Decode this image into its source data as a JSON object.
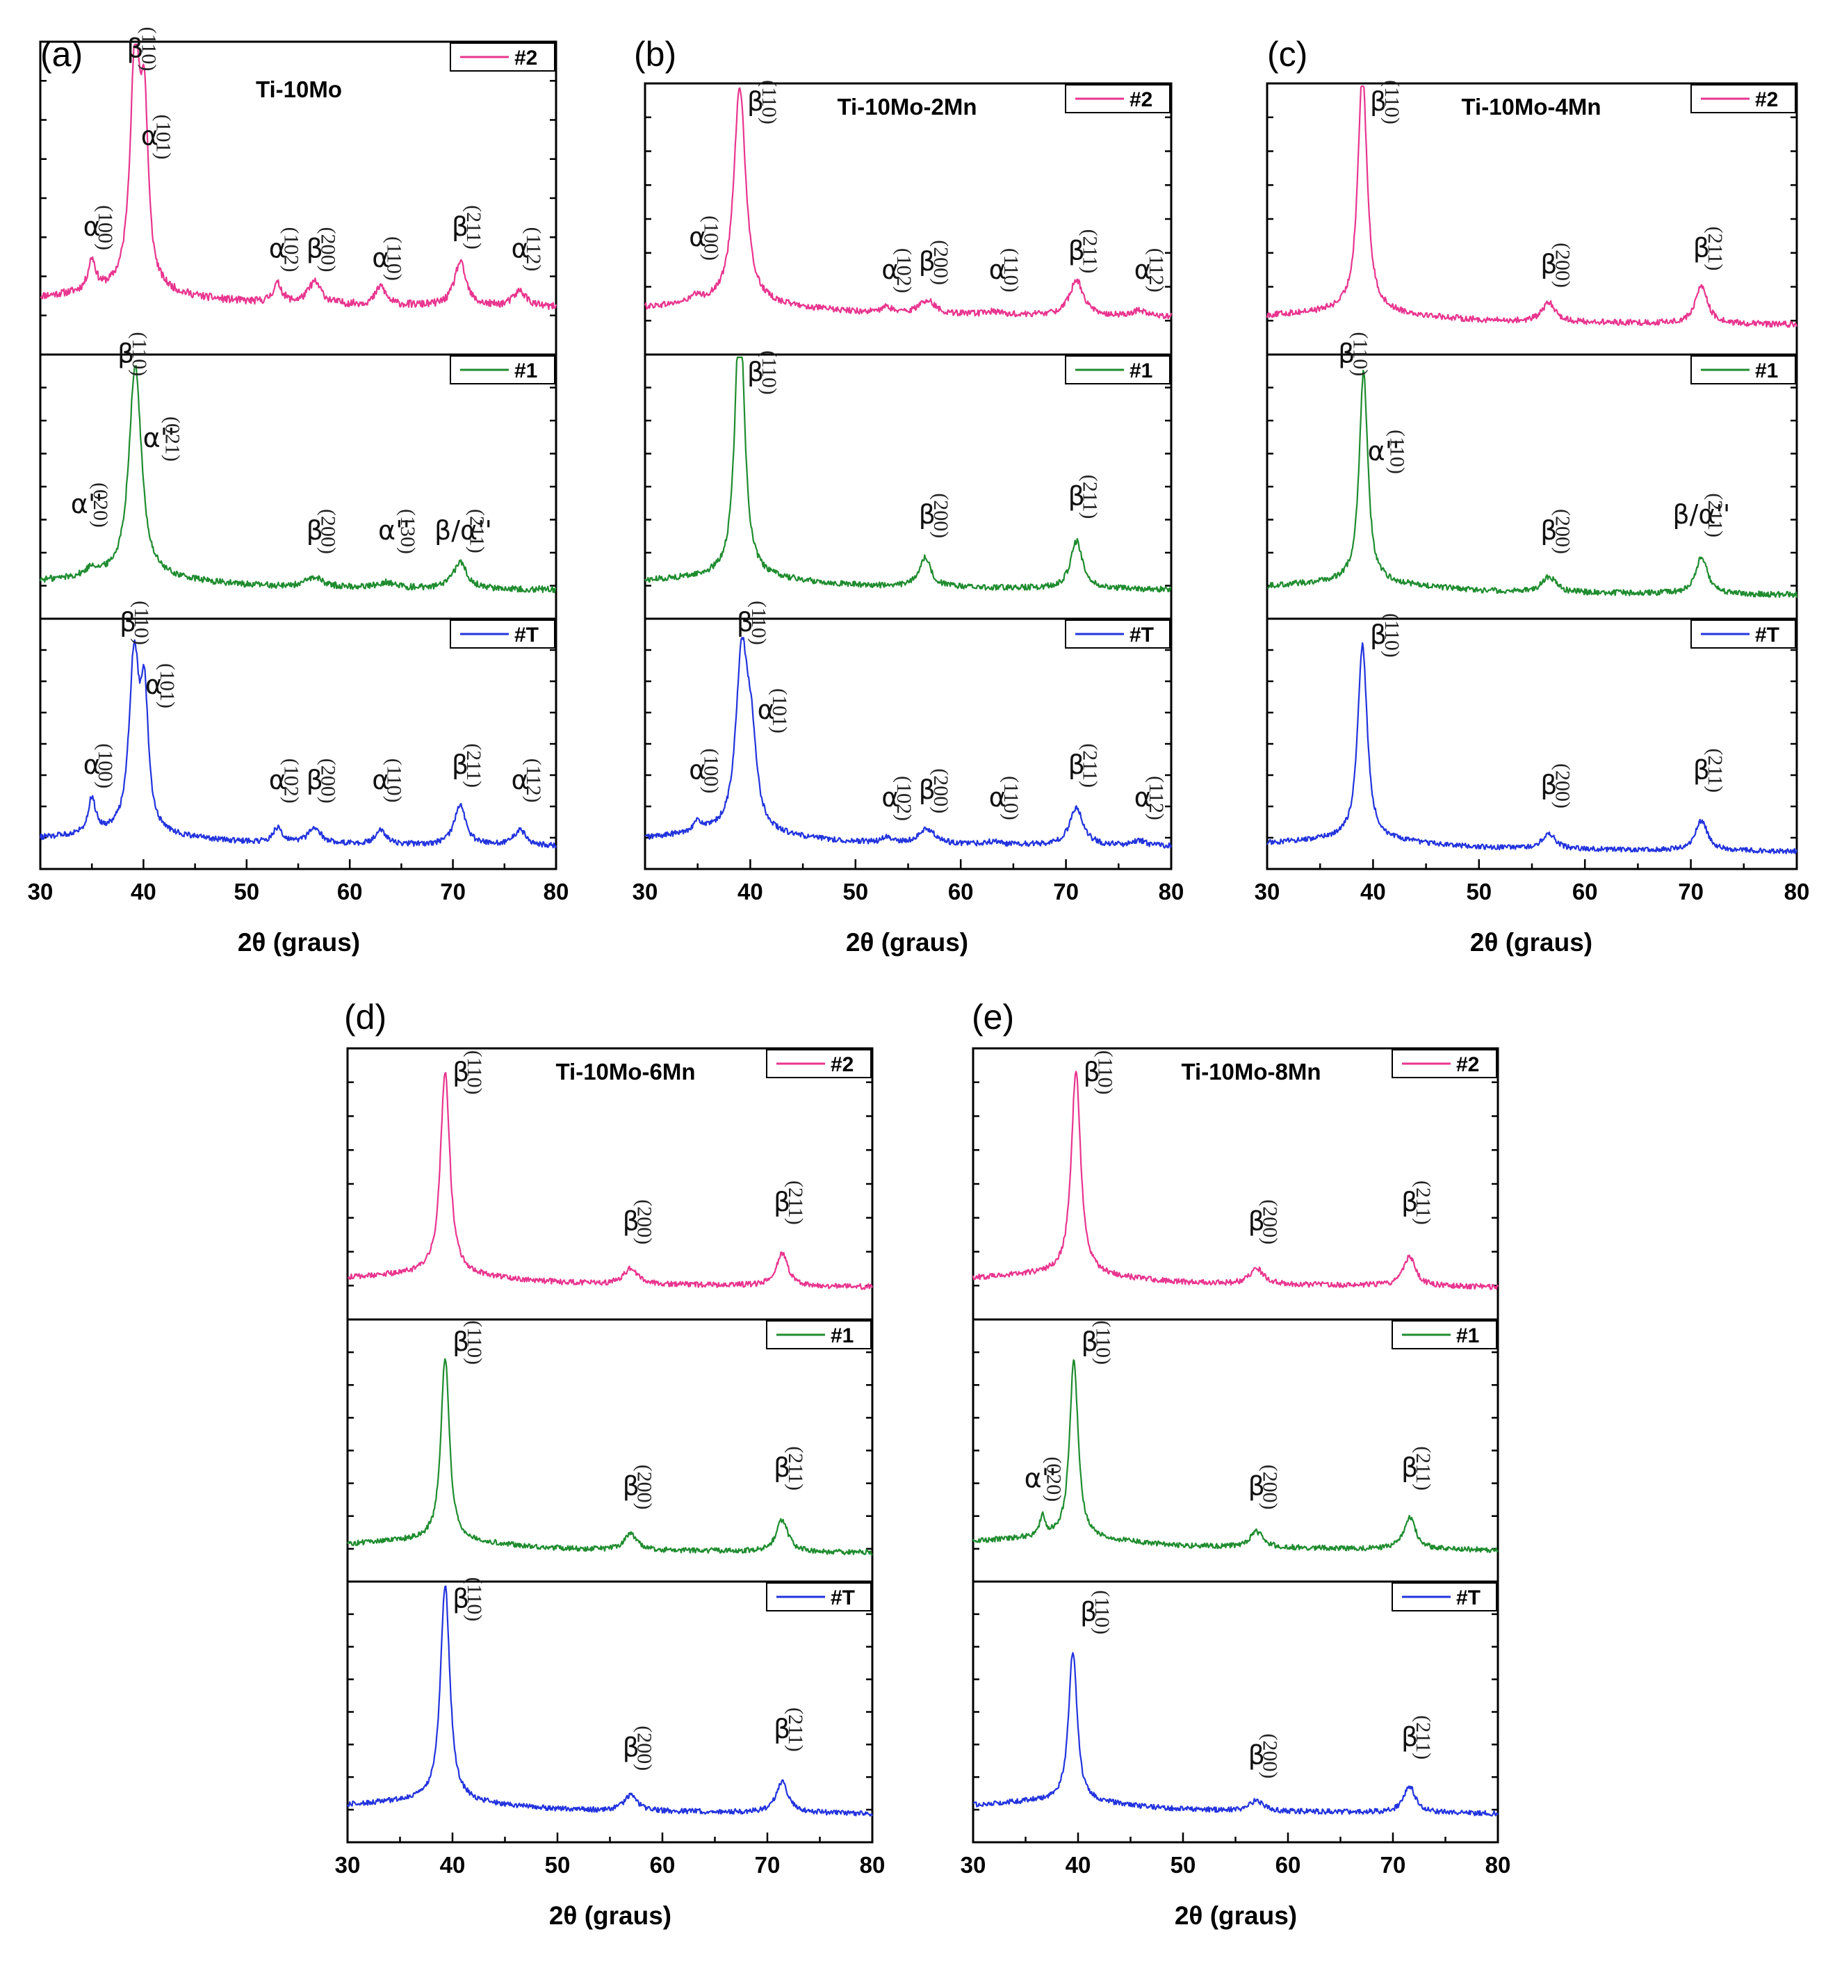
{
  "chart_data": [
    {
      "type": "line",
      "panel": "(a)",
      "title": "Ti-10Mo",
      "xlabel": "2θ  (graus)",
      "xlim": [
        30,
        80
      ],
      "xticks": [
        30,
        40,
        50,
        60,
        70,
        80
      ],
      "series": [
        {
          "name": "#2",
          "color": "#e8358f",
          "baseline": 0.17,
          "noise": 0.012,
          "peaks": [
            [
              35.0,
              0.1,
              0.45
            ],
            [
              39.2,
              0.75,
              0.6
            ],
            [
              40.1,
              0.5,
              0.45
            ],
            [
              53.0,
              0.06,
              0.55
            ],
            [
              56.6,
              0.07,
              0.8
            ],
            [
              63.0,
              0.06,
              0.6
            ],
            [
              70.7,
              0.14,
              0.7
            ],
            [
              76.5,
              0.05,
              0.8
            ]
          ],
          "annotations": [
            {
              "x": 35.0,
              "y": 0.38,
              "phase": "α",
              "hkl": "(100)"
            },
            {
              "x": 39.2,
              "y": 0.95,
              "phase": "β",
              "hkl": "(110)"
            },
            {
              "x": 40.6,
              "y": 0.67,
              "phase": "α",
              "hkl": "(101)"
            },
            {
              "x": 53.0,
              "y": 0.31,
              "phase": "α",
              "hkl": "(102)"
            },
            {
              "x": 56.6,
              "y": 0.31,
              "phase": "β",
              "hkl": "(200)"
            },
            {
              "x": 63.0,
              "y": 0.28,
              "phase": "α",
              "hkl": "(110)"
            },
            {
              "x": 70.7,
              "y": 0.38,
              "phase": "β",
              "hkl": "(211)"
            },
            {
              "x": 76.5,
              "y": 0.31,
              "phase": "α",
              "hkl": "(112)"
            }
          ]
        },
        {
          "name": "#1",
          "color": "#1f8c2f",
          "baseline": 0.13,
          "noise": 0.012,
          "peaks": [
            [
              35.0,
              0.03,
              0.6
            ],
            [
              39.2,
              0.8,
              0.75
            ],
            [
              56.6,
              0.035,
              1.0
            ],
            [
              63.5,
              0.02,
              1.0
            ],
            [
              70.7,
              0.1,
              0.8
            ]
          ],
          "annotations": [
            {
              "x": 34.5,
              "y": 0.4,
              "phase": "α''",
              "hkl": "(020)"
            },
            {
              "x": 38.3,
              "y": 0.97,
              "phase": "β",
              "hkl": "(110)"
            },
            {
              "x": 41.5,
              "y": 0.65,
              "phase": "α''",
              "hkl": "(021)"
            },
            {
              "x": 56.6,
              "y": 0.3,
              "phase": "β",
              "hkl": "(200)"
            },
            {
              "x": 64.3,
              "y": 0.3,
              "phase": "α''",
              "hkl": "(130)"
            },
            {
              "x": 71.0,
              "y": 0.3,
              "phase": "β/α''",
              "hkl": "(211)"
            }
          ]
        },
        {
          "name": "#T",
          "color": "#2233dd",
          "baseline": 0.11,
          "noise": 0.011,
          "peaks": [
            [
              35.0,
              0.14,
              0.45
            ],
            [
              39.1,
              0.7,
              0.6
            ],
            [
              40.1,
              0.5,
              0.45
            ],
            [
              53.0,
              0.06,
              0.55
            ],
            [
              56.6,
              0.06,
              0.8
            ],
            [
              63.0,
              0.06,
              0.6
            ],
            [
              70.7,
              0.16,
              0.7
            ],
            [
              76.5,
              0.06,
              0.8
            ]
          ],
          "annotations": [
            {
              "x": 35.0,
              "y": 0.38,
              "phase": "α",
              "hkl": "(100)"
            },
            {
              "x": 38.5,
              "y": 0.95,
              "phase": "β",
              "hkl": "(110)"
            },
            {
              "x": 41.0,
              "y": 0.7,
              "phase": "α",
              "hkl": "(101)"
            },
            {
              "x": 53.0,
              "y": 0.32,
              "phase": "α",
              "hkl": "(102)"
            },
            {
              "x": 56.6,
              "y": 0.32,
              "phase": "β",
              "hkl": "(200)"
            },
            {
              "x": 63.0,
              "y": 0.32,
              "phase": "α",
              "hkl": "(110)"
            },
            {
              "x": 70.7,
              "y": 0.38,
              "phase": "β",
              "hkl": "(211)"
            },
            {
              "x": 76.5,
              "y": 0.32,
              "phase": "α",
              "hkl": "(112)"
            }
          ]
        }
      ]
    },
    {
      "type": "line",
      "panel": "(b)",
      "title": "Ti-10Mo-2Mn",
      "xlabel": "2θ (graus)",
      "xlim": [
        30,
        80
      ],
      "xticks": [
        30,
        40,
        50,
        60,
        70,
        80
      ],
      "series": [
        {
          "name": "#2",
          "color": "#e8358f",
          "baseline": 0.16,
          "noise": 0.011,
          "peaks": [
            [
              34.8,
              0.02,
              0.6
            ],
            [
              39.0,
              0.8,
              0.7
            ],
            [
              53.0,
              0.02,
              0.6
            ],
            [
              56.8,
              0.05,
              0.9
            ],
            [
              63.0,
              0.01,
              0.8
            ],
            [
              71.0,
              0.13,
              0.8
            ],
            [
              77.0,
              0.02,
              0.8
            ]
          ],
          "annotations": [
            {
              "x": 35.0,
              "y": 0.4,
              "phase": "α",
              "hkl": "(100)"
            },
            {
              "x": 40.5,
              "y": 0.9,
              "phase": "β",
              "hkl": "(110)"
            },
            {
              "x": 53.3,
              "y": 0.28,
              "phase": "α",
              "hkl": "(102)"
            },
            {
              "x": 56.8,
              "y": 0.31,
              "phase": "β",
              "hkl": "(200)"
            },
            {
              "x": 63.5,
              "y": 0.28,
              "phase": "α",
              "hkl": "(110)"
            },
            {
              "x": 71.0,
              "y": 0.35,
              "phase": "β",
              "hkl": "(211)"
            },
            {
              "x": 77.3,
              "y": 0.28,
              "phase": "α",
              "hkl": "(112)"
            }
          ]
        },
        {
          "name": "#1",
          "color": "#1f8c2f",
          "baseline": 0.13,
          "noise": 0.011,
          "peaks": [
            [
              39.0,
              1.05,
              0.55
            ],
            [
              56.6,
              0.11,
              0.7
            ],
            [
              71.0,
              0.18,
              0.7
            ]
          ],
          "annotations": [
            {
              "x": 40.5,
              "y": 0.9,
              "phase": "β",
              "hkl": "(110)"
            },
            {
              "x": 56.8,
              "y": 0.36,
              "phase": "β",
              "hkl": "(200)"
            },
            {
              "x": 71.0,
              "y": 0.43,
              "phase": "β",
              "hkl": "(211)"
            }
          ]
        },
        {
          "name": "#T",
          "color": "#2233dd",
          "baseline": 0.11,
          "noise": 0.011,
          "peaks": [
            [
              35.0,
              0.04,
              0.6
            ],
            [
              39.2,
              0.7,
              0.7
            ],
            [
              40.1,
              0.3,
              0.6
            ],
            [
              53.0,
              0.02,
              0.6
            ],
            [
              56.8,
              0.06,
              0.9
            ],
            [
              63.0,
              0.01,
              0.8
            ],
            [
              71.0,
              0.15,
              0.8
            ],
            [
              77.0,
              0.02,
              0.8
            ]
          ],
          "annotations": [
            {
              "x": 35.0,
              "y": 0.36,
              "phase": "α",
              "hkl": "(100)"
            },
            {
              "x": 39.5,
              "y": 0.95,
              "phase": "β",
              "hkl": "(110)"
            },
            {
              "x": 41.5,
              "y": 0.6,
              "phase": "α",
              "hkl": "(101)"
            },
            {
              "x": 53.3,
              "y": 0.25,
              "phase": "α",
              "hkl": "(102)"
            },
            {
              "x": 56.8,
              "y": 0.28,
              "phase": "β",
              "hkl": "(200)"
            },
            {
              "x": 63.5,
              "y": 0.25,
              "phase": "α",
              "hkl": "(110)"
            },
            {
              "x": 71.0,
              "y": 0.38,
              "phase": "β",
              "hkl": "(211)"
            },
            {
              "x": 77.3,
              "y": 0.25,
              "phase": "α",
              "hkl": "(112)"
            }
          ]
        }
      ]
    },
    {
      "type": "line",
      "panel": "(c)",
      "title": "Ti-10Mo-4Mn",
      "xlabel": "2θ (graus)",
      "xlim": [
        30,
        80
      ],
      "xticks": [
        30,
        40,
        50,
        60,
        70,
        80
      ],
      "series": [
        {
          "name": "#2",
          "color": "#e8358f",
          "baseline": 0.13,
          "noise": 0.011,
          "peaks": [
            [
              39.0,
              0.88,
              0.55
            ],
            [
              56.6,
              0.07,
              0.8
            ],
            [
              71.0,
              0.14,
              0.7
            ]
          ],
          "annotations": [
            {
              "x": 40.5,
              "y": 0.9,
              "phase": "β",
              "hkl": "(110)"
            },
            {
              "x": 56.6,
              "y": 0.3,
              "phase": "β",
              "hkl": "(200)"
            },
            {
              "x": 71.0,
              "y": 0.36,
              "phase": "β",
              "hkl": "(211)"
            }
          ]
        },
        {
          "name": "#1",
          "color": "#1f8c2f",
          "baseline": 0.11,
          "noise": 0.011,
          "peaks": [
            [
              39.1,
              0.8,
              0.5
            ],
            [
              56.6,
              0.06,
              0.8
            ],
            [
              71.0,
              0.14,
              0.7
            ]
          ],
          "annotations": [
            {
              "x": 37.5,
              "y": 0.97,
              "phase": "β",
              "hkl": "(110)"
            },
            {
              "x": 41.0,
              "y": 0.6,
              "phase": "α''",
              "hkl": "(110)"
            },
            {
              "x": 56.6,
              "y": 0.3,
              "phase": "β",
              "hkl": "(200)"
            },
            {
              "x": 71.0,
              "y": 0.36,
              "phase": "β/α''",
              "hkl": "(211)"
            }
          ]
        },
        {
          "name": "#T",
          "color": "#2233dd",
          "baseline": 0.09,
          "noise": 0.01,
          "peaks": [
            [
              39.0,
              0.78,
              0.55
            ],
            [
              56.6,
              0.06,
              0.8
            ],
            [
              71.0,
              0.12,
              0.7
            ]
          ],
          "annotations": [
            {
              "x": 40.5,
              "y": 0.9,
              "phase": "β",
              "hkl": "(110)"
            },
            {
              "x": 56.6,
              "y": 0.3,
              "phase": "β",
              "hkl": "(200)"
            },
            {
              "x": 71.0,
              "y": 0.36,
              "phase": "β",
              "hkl": "(211)"
            }
          ]
        }
      ]
    },
    {
      "type": "line",
      "panel": "(d)",
      "title": "Ti-10Mo-6Mn",
      "xlabel": "2θ (graus)",
      "xlim": [
        30,
        80
      ],
      "xticks": [
        30,
        40,
        50,
        60,
        70,
        80
      ],
      "series": [
        {
          "name": "#2",
          "color": "#e8358f",
          "baseline": 0.14,
          "noise": 0.01,
          "peaks": [
            [
              39.3,
              0.75,
              0.55
            ],
            [
              57.0,
              0.06,
              0.8
            ],
            [
              71.4,
              0.12,
              0.7
            ]
          ],
          "annotations": [
            {
              "x": 40.8,
              "y": 0.88,
              "phase": "β",
              "hkl": "(110)"
            },
            {
              "x": 57.0,
              "y": 0.33,
              "phase": "β",
              "hkl": "(200)"
            },
            {
              "x": 71.4,
              "y": 0.4,
              "phase": "β",
              "hkl": "(211)"
            }
          ]
        },
        {
          "name": "#1",
          "color": "#1f8c2f",
          "baseline": 0.13,
          "noise": 0.01,
          "peaks": [
            [
              39.3,
              0.7,
              0.5
            ],
            [
              57.0,
              0.06,
              0.8
            ],
            [
              71.4,
              0.12,
              0.7
            ]
          ],
          "annotations": [
            {
              "x": 40.8,
              "y": 0.88,
              "phase": "β",
              "hkl": "(110)"
            },
            {
              "x": 57.0,
              "y": 0.33,
              "phase": "β",
              "hkl": "(200)"
            },
            {
              "x": 71.4,
              "y": 0.4,
              "phase": "β",
              "hkl": "(211)"
            }
          ]
        },
        {
          "name": "#T",
          "color": "#2233dd",
          "baseline": 0.13,
          "noise": 0.01,
          "peaks": [
            [
              39.3,
              0.83,
              0.55
            ],
            [
              57.0,
              0.06,
              0.8
            ],
            [
              71.4,
              0.12,
              0.7
            ]
          ],
          "annotations": [
            {
              "x": 40.8,
              "y": 0.9,
              "phase": "β",
              "hkl": "(110)"
            },
            {
              "x": 57.0,
              "y": 0.33,
              "phase": "β",
              "hkl": "(200)"
            },
            {
              "x": 71.4,
              "y": 0.4,
              "phase": "β",
              "hkl": "(211)"
            }
          ]
        }
      ]
    },
    {
      "type": "line",
      "panel": "(e)",
      "title": "Ti-10Mo-8Mn",
      "xlabel": "2θ (graus)",
      "xlim": [
        30,
        80
      ],
      "xticks": [
        30,
        40,
        50,
        60,
        70,
        80
      ],
      "series": [
        {
          "name": "#2",
          "color": "#e8358f",
          "baseline": 0.14,
          "noise": 0.01,
          "peaks": [
            [
              39.8,
              0.75,
              0.55
            ],
            [
              57.0,
              0.06,
              0.8
            ],
            [
              71.6,
              0.11,
              0.7
            ]
          ],
          "annotations": [
            {
              "x": 41.3,
              "y": 0.88,
              "phase": "β",
              "hkl": "(110)"
            },
            {
              "x": 57.0,
              "y": 0.33,
              "phase": "β",
              "hkl": "(200)"
            },
            {
              "x": 71.6,
              "y": 0.4,
              "phase": "β",
              "hkl": "(211)"
            }
          ]
        },
        {
          "name": "#1",
          "color": "#1f8c2f",
          "baseline": 0.14,
          "noise": 0.01,
          "peaks": [
            [
              36.6,
              0.08,
              0.3
            ],
            [
              39.6,
              0.68,
              0.5
            ],
            [
              57.0,
              0.06,
              0.8
            ],
            [
              71.6,
              0.12,
              0.7
            ]
          ],
          "annotations": [
            {
              "x": 36.4,
              "y": 0.36,
              "phase": "α''",
              "hkl": "(020)"
            },
            {
              "x": 41.1,
              "y": 0.88,
              "phase": "β",
              "hkl": "(110)"
            },
            {
              "x": 57.0,
              "y": 0.33,
              "phase": "β",
              "hkl": "(200)"
            },
            {
              "x": 71.6,
              "y": 0.4,
              "phase": "β",
              "hkl": "(211)"
            }
          ]
        },
        {
          "name": "#T",
          "color": "#2233dd",
          "baseline": 0.13,
          "noise": 0.01,
          "peaks": [
            [
              39.5,
              0.58,
              0.5
            ],
            [
              57.0,
              0.04,
              0.8
            ],
            [
              71.6,
              0.1,
              0.7
            ]
          ],
          "annotations": [
            {
              "x": 41.0,
              "y": 0.85,
              "phase": "β",
              "hkl": "(110)"
            },
            {
              "x": 57.0,
              "y": 0.3,
              "phase": "β",
              "hkl": "(200)"
            },
            {
              "x": 71.6,
              "y": 0.37,
              "phase": "β",
              "hkl": "(211)"
            }
          ]
        }
      ]
    }
  ]
}
